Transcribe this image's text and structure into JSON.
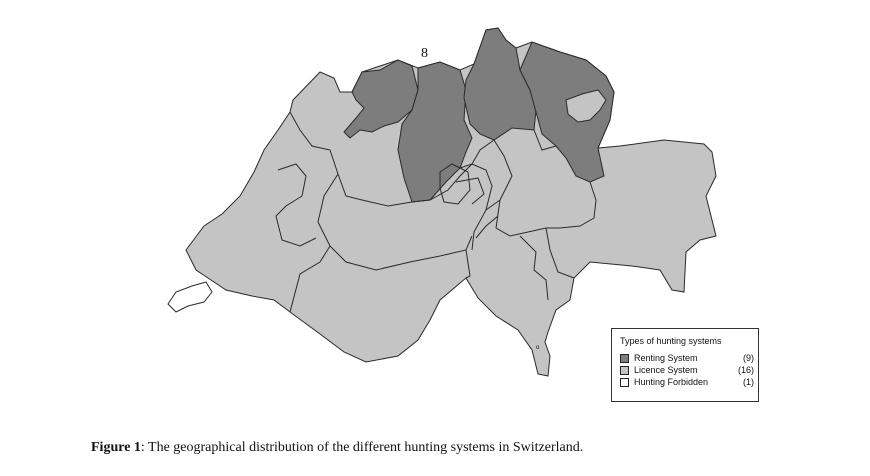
{
  "map": {
    "region_label": "8",
    "small_mark": "o",
    "colors": {
      "renting": "#7d7d7d",
      "licence": "#c4c4c4",
      "forbidden": "#ffffff",
      "border": "#2a2a2a"
    }
  },
  "legend": {
    "title": "Types of hunting systems",
    "items": [
      {
        "label": "Renting System",
        "count": "(9)",
        "color": "#7d7d7d"
      },
      {
        "label": "Licence System",
        "count": "(16)",
        "color": "#c4c4c4"
      },
      {
        "label": "Hunting Forbidden",
        "count": "(1)",
        "color": "#ffffff"
      }
    ]
  },
  "caption": {
    "label": "Figure 1",
    "text": ": The geographical distribution of the different hunting systems in Switzerland."
  }
}
